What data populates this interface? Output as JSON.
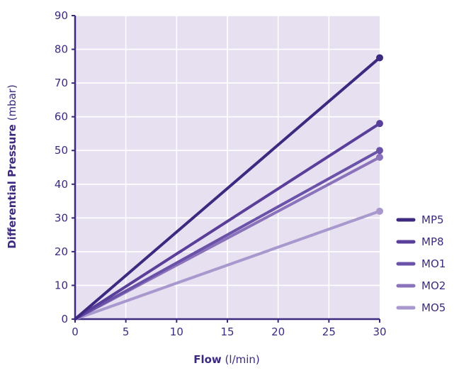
{
  "chart_data": {
    "type": "line",
    "xlabel_bold": "Flow",
    "xlabel_unit": " (l/min)",
    "ylabel_bold": "Differential Pressure",
    "ylabel_unit": " (mbar)",
    "xlim": [
      0,
      30
    ],
    "ylim": [
      0,
      90
    ],
    "x_ticks": [
      "0",
      "5",
      "10",
      "15",
      "20",
      "25",
      "30"
    ],
    "y_ticks": [
      "0",
      "10",
      "20",
      "30",
      "40",
      "50",
      "60",
      "70",
      "80",
      "90"
    ],
    "grid": true,
    "legend_position": "right",
    "series": [
      {
        "name": "MP5",
        "color": "#3d2a80",
        "x": [
          0,
          30
        ],
        "y": [
          0,
          77.5
        ]
      },
      {
        "name": "MP8",
        "color": "#5a3f9a",
        "x": [
          0,
          30
        ],
        "y": [
          0,
          58
        ]
      },
      {
        "name": "MO1",
        "color": "#6a52a8",
        "x": [
          0,
          30
        ],
        "y": [
          0,
          50
        ]
      },
      {
        "name": "MO2",
        "color": "#8a73bb",
        "x": [
          0,
          30
        ],
        "y": [
          0,
          48
        ]
      },
      {
        "name": "MO5",
        "color": "#a898cd",
        "x": [
          0,
          30
        ],
        "y": [
          0,
          32
        ]
      }
    ]
  },
  "colors": {
    "plot_background": "#e6e0f1",
    "grid": "#ffffff",
    "axis": "#3d2a80",
    "text": "#3d2a80"
  }
}
